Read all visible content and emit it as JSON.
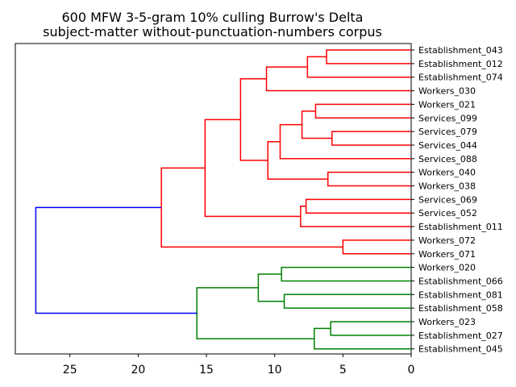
{
  "chart_data": {
    "type": "dendrogram",
    "title_line1": "600 MFW 3-5-gram 10% culling Burrow's Delta",
    "title_line2": "subject-matter without-punctuation-numbers corpus",
    "orientation": "left",
    "xlim": [
      29,
      0
    ],
    "xticks": [
      25,
      20,
      15,
      10,
      5,
      0
    ],
    "grid": false,
    "leaves": [
      "Establishment_043",
      "Establishment_012",
      "Establishment_074",
      "Workers_030",
      "Workers_021",
      "Services_099",
      "Services_079",
      "Services_044",
      "Services_088",
      "Workers_040",
      "Workers_038",
      "Services_069",
      "Services_052",
      "Establishment_011",
      "Workers_072",
      "Workers_071",
      "Workers_020",
      "Establishment_066",
      "Establishment_081",
      "Establishment_058",
      "Workers_023",
      "Establishment_027",
      "Establishment_045"
    ],
    "colors": {
      "cluster_a": "#ff0000",
      "cluster_b": "#008000",
      "root": "#0000ff"
    },
    "merges": [
      {
        "id": "m1",
        "left": "L0",
        "right": "L1",
        "height": 6.2,
        "color": "cluster_a"
      },
      {
        "id": "m2",
        "left": "m1",
        "right": "L2",
        "height": 7.6,
        "color": "cluster_a"
      },
      {
        "id": "m3",
        "left": "m2",
        "right": "L3",
        "height": 10.6,
        "color": "cluster_a"
      },
      {
        "id": "m4",
        "left": "L4",
        "right": "L5",
        "height": 7.0,
        "color": "cluster_a"
      },
      {
        "id": "m5",
        "left": "L6",
        "right": "L7",
        "height": 5.8,
        "color": "cluster_a"
      },
      {
        "id": "m6",
        "left": "m4",
        "right": "m5",
        "height": 8.0,
        "color": "cluster_a"
      },
      {
        "id": "m7",
        "left": "m6",
        "right": "L8",
        "height": 9.6,
        "color": "cluster_a"
      },
      {
        "id": "m8",
        "left": "L9",
        "right": "L10",
        "height": 6.1,
        "color": "cluster_a"
      },
      {
        "id": "m9",
        "left": "m7",
        "right": "m8",
        "height": 10.5,
        "color": "cluster_a"
      },
      {
        "id": "m10",
        "left": "m3",
        "right": "m9",
        "height": 12.5,
        "color": "cluster_a"
      },
      {
        "id": "m11",
        "left": "L11",
        "right": "L12",
        "height": 7.7,
        "color": "cluster_a"
      },
      {
        "id": "m12",
        "left": "m11",
        "right": "L13",
        "height": 8.1,
        "color": "cluster_a"
      },
      {
        "id": "m13",
        "left": "m10",
        "right": "m12",
        "height": 15.1,
        "color": "cluster_a"
      },
      {
        "id": "m14",
        "left": "L14",
        "right": "L15",
        "height": 5.0,
        "color": "cluster_a"
      },
      {
        "id": "m15",
        "left": "m13",
        "right": "m14",
        "height": 18.3,
        "color": "cluster_a"
      },
      {
        "id": "m16",
        "left": "L16",
        "right": "L17",
        "height": 9.5,
        "color": "cluster_b"
      },
      {
        "id": "m17",
        "left": "L18",
        "right": "L19",
        "height": 9.3,
        "color": "cluster_b"
      },
      {
        "id": "m18",
        "left": "m16",
        "right": "m17",
        "height": 11.2,
        "color": "cluster_b"
      },
      {
        "id": "m19",
        "left": "L20",
        "right": "L21",
        "height": 5.9,
        "color": "cluster_b"
      },
      {
        "id": "m20",
        "left": "m19",
        "right": "L22",
        "height": 7.1,
        "color": "cluster_b"
      },
      {
        "id": "m21",
        "left": "m18",
        "right": "m20",
        "height": 15.7,
        "color": "cluster_b"
      },
      {
        "id": "m22",
        "left": "m15",
        "right": "m21",
        "height": 27.5,
        "color": "root"
      }
    ]
  }
}
